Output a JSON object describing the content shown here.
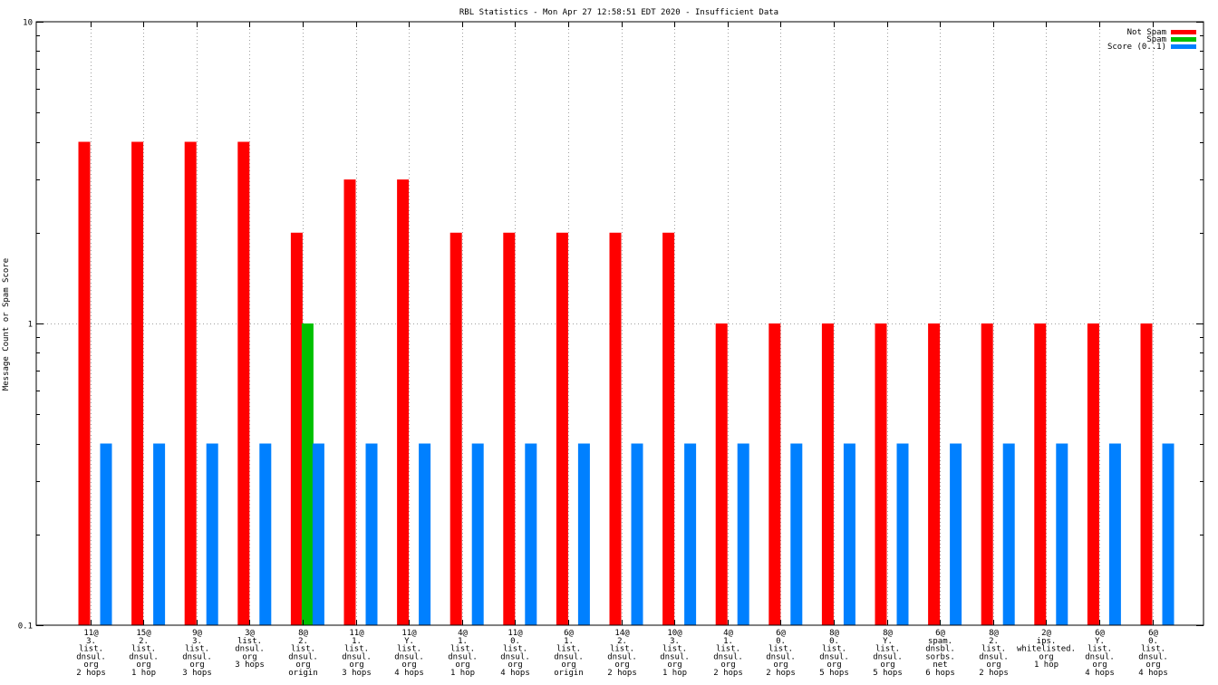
{
  "chart_data": {
    "type": "bar",
    "title": "RBL Statistics - Mon Apr 27 12:58:51 EDT 2020 - Insufficient Data",
    "xlabel": "",
    "ylabel": "Message Count or Spam Score",
    "yscale": "log",
    "ylim": [
      0.1,
      10
    ],
    "yticks": [
      {
        "value": 0.1,
        "label": "0.1"
      },
      {
        "value": 1,
        "label": "1"
      },
      {
        "value": 10,
        "label": "10"
      }
    ],
    "grid": true,
    "legend_position": "top-right",
    "categories": [
      [
        "11@",
        "3.",
        "list.",
        "dnsul.",
        "org",
        "2 hops"
      ],
      [
        "15@",
        "2.",
        "list.",
        "dnsul.",
        "org",
        "1 hop"
      ],
      [
        "9@",
        "3.",
        "list.",
        "dnsul.",
        "org",
        "3 hops"
      ],
      [
        "3@",
        "list.",
        "dnsul.",
        "org",
        "3 hops"
      ],
      [
        "8@",
        "2.",
        "list.",
        "dnsul.",
        "org",
        "origin"
      ],
      [
        "11@",
        "1.",
        "list.",
        "dnsul.",
        "org",
        "3 hops"
      ],
      [
        "11@",
        "Y.",
        "list.",
        "dnsul.",
        "org",
        "4 hops"
      ],
      [
        "4@",
        "1.",
        "list.",
        "dnsul.",
        "org",
        "1 hop"
      ],
      [
        "11@",
        "0.",
        "list.",
        "dnsul.",
        "org",
        "4 hops"
      ],
      [
        "6@",
        "1.",
        "list.",
        "dnsul.",
        "org",
        "origin"
      ],
      [
        "14@",
        "2.",
        "list.",
        "dnsul.",
        "org",
        "2 hops"
      ],
      [
        "10@",
        "3.",
        "list.",
        "dnsul.",
        "org",
        "1 hop"
      ],
      [
        "4@",
        "1.",
        "list.",
        "dnsul.",
        "org",
        "2 hops"
      ],
      [
        "6@",
        "0.",
        "list.",
        "dnsul.",
        "org",
        "2 hops"
      ],
      [
        "8@",
        "0.",
        "list.",
        "dnsul.",
        "org",
        "5 hops"
      ],
      [
        "8@",
        "Y.",
        "list.",
        "dnsul.",
        "org",
        "5 hops"
      ],
      [
        "6@",
        "spam.",
        "dnsbl.",
        "sorbs.",
        "net",
        "6 hops"
      ],
      [
        "8@",
        "2.",
        "list.",
        "dnsul.",
        "org",
        "2 hops"
      ],
      [
        "2@",
        "ips.",
        "whitelisted.",
        "org",
        "1 hop"
      ],
      [
        "6@",
        "Y.",
        "list.",
        "dnsul.",
        "org",
        "4 hops"
      ],
      [
        "6@",
        "0.",
        "list.",
        "dnsul.",
        "org",
        "4 hops"
      ]
    ],
    "series": [
      {
        "name": "Not Spam",
        "color": "#ff0000",
        "values": [
          4,
          4,
          4,
          4,
          2,
          3,
          3,
          2,
          2,
          2,
          2,
          2,
          1,
          1,
          1,
          1,
          1,
          1,
          1,
          1,
          1
        ]
      },
      {
        "name": "Spam",
        "color": "#00c000",
        "values": [
          null,
          null,
          null,
          null,
          1,
          null,
          null,
          null,
          null,
          null,
          null,
          null,
          null,
          null,
          null,
          null,
          null,
          null,
          null,
          null,
          null
        ]
      },
      {
        "name": "Score (0..1)",
        "color": "#0080ff",
        "values": [
          0.4,
          0.4,
          0.4,
          0.4,
          0.4,
          0.4,
          0.4,
          0.4,
          0.4,
          0.4,
          0.4,
          0.4,
          0.4,
          0.4,
          0.4,
          0.4,
          0.4,
          0.4,
          0.4,
          0.4,
          0.4
        ]
      }
    ]
  }
}
